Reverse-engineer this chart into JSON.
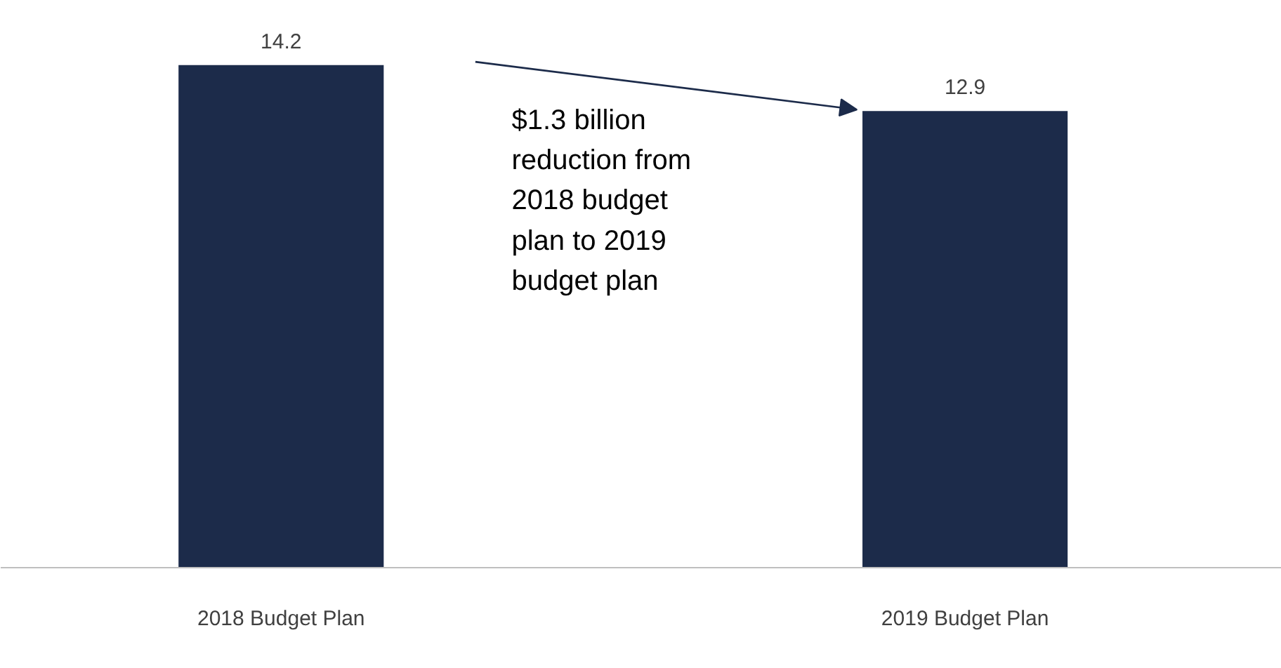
{
  "chart_data": {
    "type": "bar",
    "categories": [
      "2018 Budget Plan",
      "2019 Budget Plan"
    ],
    "values": [
      14.2,
      12.9
    ],
    "color": "#1c2b4a",
    "data_labels": true,
    "grid": false,
    "annotations": [
      "$1.3 billion reduction from 2018 budget plan to 2019 budget plan"
    ]
  }
}
